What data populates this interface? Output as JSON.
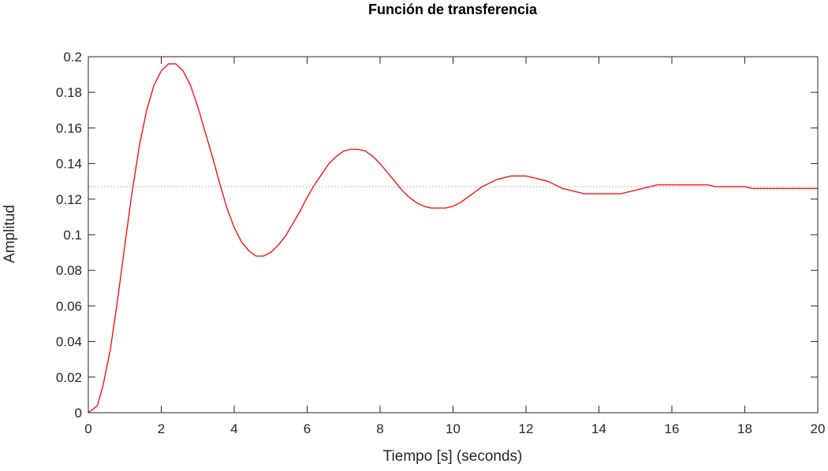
{
  "chart_data": {
    "type": "line",
    "title": "Función de transferencia",
    "xlabel": "Tiempo [s] (seconds)",
    "ylabel": "Amplitud",
    "xlim": [
      0,
      20
    ],
    "ylim": [
      0,
      0.2
    ],
    "xticks": [
      0,
      2,
      4,
      6,
      8,
      10,
      12,
      14,
      16,
      18,
      20
    ],
    "xtick_labels": [
      "0",
      "2",
      "4",
      "6",
      "8",
      "10",
      "12",
      "14",
      "16",
      "18",
      "20"
    ],
    "yticks": [
      0,
      0.02,
      0.04,
      0.06,
      0.08,
      0.1,
      0.12,
      0.14,
      0.16,
      0.18,
      0.2
    ],
    "ytick_labels": [
      "0",
      "0.02",
      "0.04",
      "0.06",
      "0.08",
      "0.1",
      "0.12",
      "0.14",
      "0.16",
      "0.18",
      "0.2"
    ],
    "grid": false,
    "box": true,
    "steady_state": {
      "value": 0.127,
      "style": "dotted",
      "color": "#b3b3b3"
    },
    "series": [
      {
        "color": "#ff0000",
        "x": [
          0,
          0.25,
          0.4,
          0.6,
          0.8,
          1.0,
          1.2,
          1.4,
          1.6,
          1.8,
          2.0,
          2.2,
          2.4,
          2.6,
          2.8,
          3.0,
          3.2,
          3.4,
          3.6,
          3.8,
          4.0,
          4.2,
          4.4,
          4.6,
          4.8,
          5.0,
          5.2,
          5.4,
          5.6,
          5.8,
          6.0,
          6.2,
          6.4,
          6.6,
          6.8,
          7.0,
          7.2,
          7.4,
          7.6,
          7.8,
          8.0,
          8.2,
          8.4,
          8.6,
          8.8,
          9.0,
          9.2,
          9.4,
          9.6,
          9.8,
          10.0,
          10.2,
          10.4,
          10.6,
          10.8,
          11.0,
          11.2,
          11.4,
          11.6,
          11.8,
          12.0,
          12.2,
          12.4,
          12.6,
          12.8,
          13.0,
          13.2,
          13.4,
          13.6,
          13.8,
          14.0,
          14.2,
          14.4,
          14.6,
          14.8,
          15.0,
          15.2,
          15.4,
          15.6,
          15.8,
          16.0,
          16.2,
          16.4,
          16.6,
          16.8,
          17.0,
          17.2,
          17.4,
          17.6,
          17.8,
          18.0,
          18.2,
          18.4,
          18.6,
          18.8,
          19.0,
          19.2,
          19.4,
          19.6,
          19.8,
          20.0
        ],
        "y": [
          0,
          0.004,
          0.015,
          0.035,
          0.063,
          0.094,
          0.124,
          0.15,
          0.17,
          0.184,
          0.192,
          0.196,
          0.196,
          0.192,
          0.184,
          0.172,
          0.158,
          0.144,
          0.129,
          0.115,
          0.104,
          0.096,
          0.091,
          0.088,
          0.088,
          0.09,
          0.094,
          0.099,
          0.106,
          0.113,
          0.121,
          0.128,
          0.134,
          0.14,
          0.144,
          0.147,
          0.148,
          0.148,
          0.147,
          0.144,
          0.14,
          0.135,
          0.13,
          0.125,
          0.121,
          0.118,
          0.116,
          0.115,
          0.115,
          0.115,
          0.116,
          0.118,
          0.121,
          0.124,
          0.127,
          0.129,
          0.131,
          0.132,
          0.133,
          0.133,
          0.133,
          0.132,
          0.131,
          0.13,
          0.128,
          0.126,
          0.125,
          0.124,
          0.123,
          0.123,
          0.123,
          0.123,
          0.123,
          0.123,
          0.124,
          0.125,
          0.126,
          0.127,
          0.128,
          0.128,
          0.128,
          0.128,
          0.128,
          0.128,
          0.128,
          0.128,
          0.127,
          0.127,
          0.127,
          0.127,
          0.127,
          0.126,
          0.126,
          0.126,
          0.126,
          0.126,
          0.126,
          0.126,
          0.126,
          0.126,
          0.126
        ]
      }
    ]
  }
}
